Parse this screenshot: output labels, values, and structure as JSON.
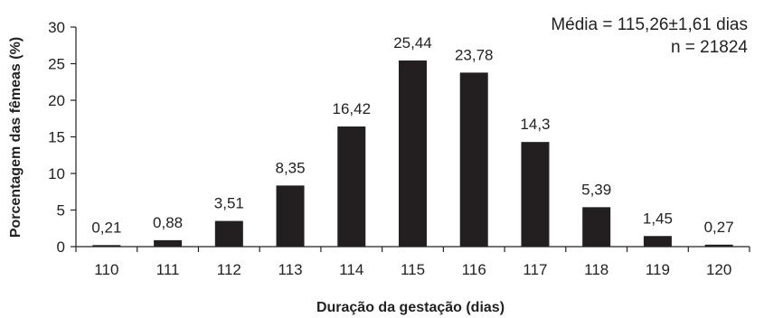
{
  "chart_data": {
    "type": "bar",
    "categories": [
      "110",
      "111",
      "112",
      "113",
      "114",
      "115",
      "116",
      "117",
      "118",
      "119",
      "120"
    ],
    "values": [
      0.21,
      0.88,
      3.51,
      8.35,
      16.42,
      25.44,
      23.78,
      14.3,
      5.39,
      1.45,
      0.27
    ],
    "value_labels": [
      "0,21",
      "0,88",
      "3,51",
      "8,35",
      "16,42",
      "25,44",
      "23,78",
      "14,3",
      "5,39",
      "1,45",
      "0,27"
    ],
    "y_ticks": [
      "0",
      "5",
      "10",
      "15",
      "20",
      "25",
      "30"
    ],
    "ylim": [
      0,
      30
    ],
    "xlabel": "Duração da gestação (dias)",
    "ylabel": "Porcentagem das fêmeas (%)",
    "annotations": [
      "Média = 115,26±1,61 dias",
      "n = 21824"
    ],
    "bar_color": "#231f20",
    "grid": false,
    "legend": "none"
  }
}
